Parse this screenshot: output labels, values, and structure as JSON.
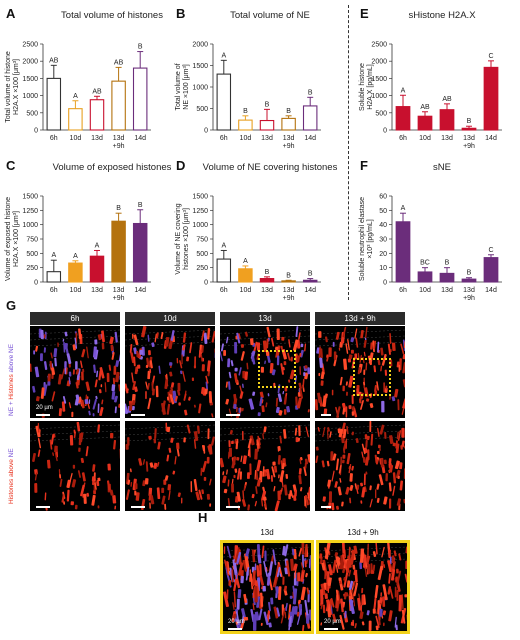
{
  "chart_data": [
    {
      "id": "A",
      "panel_letter": "A",
      "type": "bar",
      "title": "Total volume of histones",
      "ylabel": "Total volume of histone H2A.X ×100 [μm³]",
      "ylim": [
        0,
        2500
      ],
      "yticks": [
        0,
        500,
        1000,
        1500,
        2000,
        2500
      ],
      "categories": [
        "6h",
        "10d",
        "13d",
        "13d +9h",
        "14d"
      ],
      "values": [
        1500,
        620,
        880,
        1420,
        1800
      ],
      "errors": [
        380,
        230,
        100,
        400,
        480
      ],
      "letters": [
        "AB",
        "A",
        "AB",
        "AB",
        "B"
      ],
      "colors": [
        "#ffffff",
        "#ffffff",
        "#ffffff",
        "#ffffff",
        "#ffffff"
      ],
      "edges": [
        "#333333",
        "#e8a021",
        "#c8102e",
        "#b4720e",
        "#6b2d7b"
      ]
    },
    {
      "id": "B",
      "panel_letter": "B",
      "type": "bar",
      "title": "Total volume of NE",
      "ylabel": "Total volume of NE ×100 [μm³]",
      "ylim": [
        0,
        2000
      ],
      "yticks": [
        0,
        500,
        1000,
        1500,
        2000
      ],
      "categories": [
        "6h",
        "10d",
        "13d",
        "13d +9h",
        "14d"
      ],
      "values": [
        1300,
        230,
        220,
        270,
        560
      ],
      "errors": [
        320,
        100,
        260,
        60,
        200
      ],
      "letters": [
        "A",
        "B",
        "B",
        "B",
        "B"
      ],
      "colors": [
        "#ffffff",
        "#ffffff",
        "#ffffff",
        "#ffffff",
        "#ffffff"
      ],
      "edges": [
        "#333333",
        "#e8a021",
        "#c8102e",
        "#b4720e",
        "#6b2d7b"
      ]
    },
    {
      "id": "C",
      "panel_letter": "C",
      "type": "bar",
      "title": "Volume of exposed histones",
      "ylabel": "Volume of exposed histone H2A.X ×100 [μm³]",
      "ylim": [
        0,
        1500
      ],
      "yticks": [
        0,
        250,
        500,
        750,
        1000,
        1250,
        1500
      ],
      "categories": [
        "6h",
        "10d",
        "13d",
        "13d +9h",
        "14d"
      ],
      "values": [
        180,
        330,
        450,
        1060,
        1020
      ],
      "errors": [
        200,
        40,
        100,
        140,
        240
      ],
      "letters": [
        "A",
        "A",
        "A",
        "B",
        "B"
      ],
      "colors": [
        "#ffffff",
        "#f0a020",
        "#c8102e",
        "#b4720e",
        "#6b2d7b"
      ],
      "edges": [
        "#333333",
        "#f0a020",
        "#c8102e",
        "#b4720e",
        "#6b2d7b"
      ]
    },
    {
      "id": "D",
      "panel_letter": "D",
      "type": "bar",
      "title": "Volume of NE covering histones",
      "ylabel": "Volume of NE covering histones ×100 [μm³]",
      "ylim": [
        0,
        1500
      ],
      "yticks": [
        0,
        250,
        500,
        750,
        1000,
        1250,
        1500
      ],
      "categories": [
        "6h",
        "10d",
        "13d",
        "13d +9h",
        "14d"
      ],
      "values": [
        400,
        230,
        60,
        20,
        30
      ],
      "errors": [
        150,
        50,
        30,
        10,
        30
      ],
      "letters": [
        "A",
        "A",
        "B",
        "B",
        "B"
      ],
      "colors": [
        "#ffffff",
        "#f0a020",
        "#c8102e",
        "#b4720e",
        "#6b2d7b"
      ],
      "edges": [
        "#333333",
        "#f0a020",
        "#c8102e",
        "#b4720e",
        "#6b2d7b"
      ]
    },
    {
      "id": "E",
      "panel_letter": "E",
      "type": "bar",
      "title": "sHistone H2A.X",
      "ylabel": "Soluble histone H2A.X [pg/mL]",
      "ylim": [
        0,
        2500
      ],
      "yticks": [
        0,
        500,
        1000,
        1500,
        2000,
        2500
      ],
      "categories": [
        "6h",
        "10d",
        "13d",
        "13d +9h",
        "14d"
      ],
      "values": [
        680,
        400,
        590,
        50,
        1820
      ],
      "errors": [
        330,
        130,
        170,
        60,
        190
      ],
      "letters": [
        "A",
        "AB",
        "AB",
        "B",
        "C"
      ],
      "colors": [
        "#c8102e",
        "#c8102e",
        "#c8102e",
        "#c8102e",
        "#c8102e"
      ],
      "edges": [
        "#c8102e",
        "#c8102e",
        "#c8102e",
        "#c8102e",
        "#c8102e"
      ]
    },
    {
      "id": "F",
      "panel_letter": "F",
      "type": "bar",
      "title": "sNE",
      "ylabel": "Soluble neutrophil elastase ×10³ [pg/mL]",
      "ylim": [
        0,
        60
      ],
      "yticks": [
        0,
        10,
        20,
        30,
        40,
        50,
        60
      ],
      "categories": [
        "6h",
        "10d",
        "13d",
        "13d +9h",
        "14d"
      ],
      "values": [
        42,
        7,
        6,
        2,
        17
      ],
      "errors": [
        6,
        3,
        4,
        1,
        2
      ],
      "letters": [
        "A",
        "BC",
        "B",
        "B",
        "C"
      ],
      "colors": [
        "#6b2d7b",
        "#6b2d7b",
        "#6b2d7b",
        "#6b2d7b",
        "#6b2d7b"
      ],
      "edges": [
        "#6b2d7b",
        "#6b2d7b",
        "#6b2d7b",
        "#6b2d7b",
        "#6b2d7b"
      ]
    }
  ],
  "panel_g": {
    "letter": "G",
    "columns": [
      "6h",
      "10d",
      "13d",
      "13d + 9h"
    ],
    "row1_label_a": "NE + ",
    "row1_label_b": "Histones",
    "row1_label_c": " above ",
    "row1_label_d": "NE",
    "row2_label_a": "Histones",
    "row2_label_b": " above ",
    "row2_label_c": "NE",
    "scale_label": "20 µm"
  },
  "panel_h": {
    "letter": "H",
    "columns": [
      "13d",
      "13d + 9h"
    ],
    "scale_label": "20 µm"
  },
  "colors": {
    "histone": "#e8321e",
    "ne": "#7a55d6",
    "highlight": "#f2d21b"
  }
}
